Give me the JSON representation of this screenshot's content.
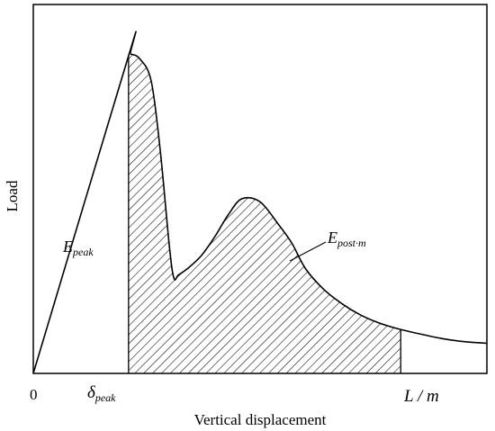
{
  "chart_data": {
    "type": "line",
    "title": "",
    "xlabel": "Vertical displacement",
    "ylabel": "Load",
    "origin_label": "0",
    "x_markers": [
      {
        "name": "delta-peak",
        "base": "δ",
        "sub": "peak",
        "x": 0.21
      },
      {
        "name": "l-over-m",
        "text": "L / m",
        "x": 0.81
      }
    ],
    "annotations": [
      {
        "name": "e-peak",
        "base": "E",
        "sub": "peak"
      },
      {
        "name": "e-post-m",
        "base": "E",
        "sub": "post·m"
      }
    ],
    "xlim": [
      0,
      1
    ],
    "ylim": [
      0,
      1
    ],
    "series": [
      {
        "x": [
          0,
          0.21,
          0.215,
          0.235,
          0.26,
          0.28,
          0.3,
          0.31,
          0.32,
          0.34,
          0.37,
          0.4,
          0.43,
          0.46,
          0.5,
          0.54,
          0.57,
          0.6,
          0.64,
          0.68,
          0.72,
          0.76,
          0.8,
          0.85,
          0.9,
          0.95,
          1.0
        ],
        "y": [
          0,
          1.0,
          1.005,
          0.99,
          0.92,
          0.7,
          0.4,
          0.3,
          0.31,
          0.33,
          0.37,
          0.43,
          0.5,
          0.55,
          0.54,
          0.47,
          0.41,
          0.33,
          0.265,
          0.22,
          0.185,
          0.16,
          0.142,
          0.125,
          0.11,
          0.1,
          0.095
        ]
      }
    ],
    "shaded_region": {
      "x_from": 0.21,
      "x_to": 0.81,
      "pattern": "diagonal-hatch"
    }
  }
}
